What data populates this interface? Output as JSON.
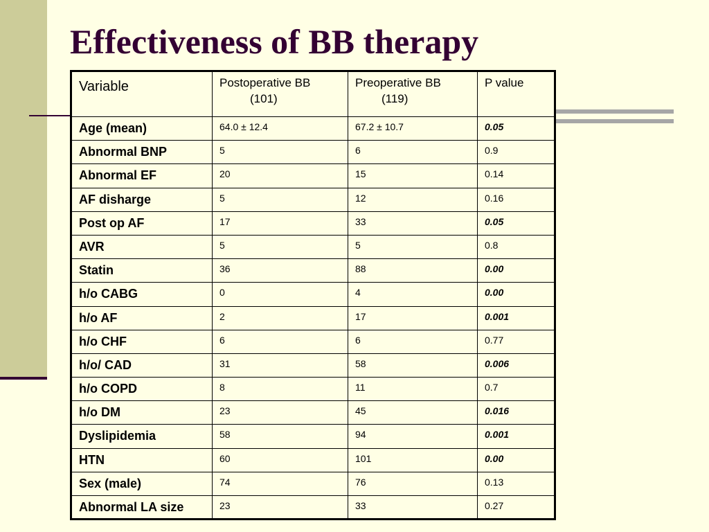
{
  "slide": {
    "title": "Effectiveness of BB therapy"
  },
  "table": {
    "headers": [
      {
        "line1": "Variable",
        "line2": ""
      },
      {
        "line1": "Postoperative BB",
        "line2": "(101)"
      },
      {
        "line1": "Preoperative BB",
        "line2": "(119)"
      },
      {
        "line1": "P value",
        "line2": ""
      }
    ],
    "rows": [
      {
        "variable": "Age (mean)",
        "postop": "64.0 ± 12.4",
        "preop": "67.2 ± 10.7",
        "p": "0.05",
        "significant": true
      },
      {
        "variable": "Abnormal BNP",
        "postop": "5",
        "preop": "6",
        "p": "0.9",
        "significant": false
      },
      {
        "variable": "Abnormal EF",
        "postop": "20",
        "preop": "15",
        "p": "0.14",
        "significant": false
      },
      {
        "variable": "AF disharge",
        "postop": "5",
        "preop": "12",
        "p": "0.16",
        "significant": false
      },
      {
        "variable": "Post op AF",
        "postop": "17",
        "preop": "33",
        "p": "0.05",
        "significant": true
      },
      {
        "variable": "AVR",
        "postop": "5",
        "preop": "5",
        "p": "0.8",
        "significant": false
      },
      {
        "variable": "Statin",
        "postop": "36",
        "preop": "88",
        "p": "0.00",
        "significant": true
      },
      {
        "variable": "h/o CABG",
        "postop": "0",
        "preop": "4",
        "p": "0.00",
        "significant": true
      },
      {
        "variable": "h/o AF",
        "postop": "2",
        "preop": "17",
        "p": "0.001",
        "significant": true
      },
      {
        "variable": "h/o CHF",
        "postop": "6",
        "preop": "6",
        "p": "0.77",
        "significant": false
      },
      {
        "variable": "h/o/ CAD",
        "postop": "31",
        "preop": "58",
        "p": "0.006",
        "significant": true
      },
      {
        "variable": "h/o COPD",
        "postop": "8",
        "preop": "11",
        "p": "0.7",
        "significant": false
      },
      {
        "variable": "h/o DM",
        "postop": "23",
        "preop": "45",
        "p": "0.016",
        "significant": true
      },
      {
        "variable": "Dyslipidemia",
        "postop": "58",
        "preop": "94",
        "p": "0.001",
        "significant": true
      },
      {
        "variable": "HTN",
        "postop": "60",
        "preop": "101",
        "p": "0.00",
        "significant": true
      },
      {
        "variable": "Sex (male)",
        "postop": "74",
        "preop": "76",
        "p": "0.13",
        "significant": false
      },
      {
        "variable": "Abnormal LA size",
        "postop": "23",
        "preop": "33",
        "p": "0.27",
        "significant": false
      }
    ]
  },
  "colors": {
    "background": "#FFFFE5",
    "accent_bar": "#CCCC99",
    "title": "#330033",
    "rule_gray": "#A6A6A6"
  }
}
